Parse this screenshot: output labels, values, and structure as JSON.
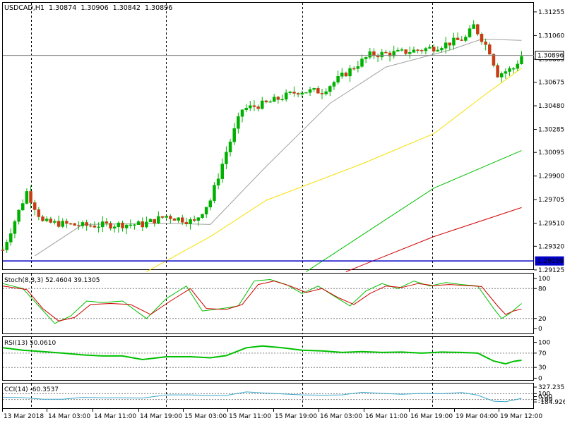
{
  "chart_data": {
    "type": "candlestick",
    "symbol_header": "USDCAD,H1",
    "ohlc_header": [
      "1.30874",
      "1.30906",
      "1.30842",
      "1.30896"
    ],
    "current_price_label": "1.30896",
    "hline_label": "1.29199",
    "hline_value": 1.29199,
    "price_range": [
      1.2913,
      1.3133
    ],
    "price_ticks": [
      "1.31255",
      "1.31060",
      "1.30865",
      "1.30675",
      "1.30480",
      "1.30285",
      "1.30095",
      "1.29900",
      "1.29705",
      "1.29510",
      "1.29320",
      "1.29125"
    ],
    "x_labels": [
      "13 Mar 2018",
      "14 Mar 03:00",
      "14 Mar 11:00",
      "14 Mar 19:00",
      "15 Mar 03:00",
      "15 Mar 11:00",
      "15 Mar 19:00",
      "16 Mar 03:00",
      "16 Mar 11:00",
      "16 Mar 19:00",
      "19 Mar 04:00",
      "19 Mar 12:00"
    ],
    "price_anchors": [
      [
        0,
        1.2929
      ],
      [
        6,
        1.2977
      ],
      [
        10,
        1.2952
      ],
      [
        20,
        1.2949
      ],
      [
        30,
        1.295
      ],
      [
        35,
        1.295
      ],
      [
        41,
        1.2957
      ],
      [
        48,
        1.2952
      ],
      [
        52,
        1.297
      ],
      [
        56,
        1.301
      ],
      [
        60,
        1.3045
      ],
      [
        66,
        1.305
      ],
      [
        74,
        1.306
      ],
      [
        80,
        1.306
      ],
      [
        86,
        1.3075
      ],
      [
        92,
        1.309
      ],
      [
        100,
        1.3092
      ],
      [
        108,
        1.3096
      ],
      [
        116,
        1.3104
      ],
      [
        118,
        1.3114
      ],
      [
        122,
        1.3093
      ],
      [
        124,
        1.3074
      ],
      [
        128,
        1.3079
      ],
      [
        130,
        1.3089
      ]
    ],
    "moving_averages": [
      {
        "color": "#a0a0a0",
        "points": [
          [
            8,
            1.2924
          ],
          [
            20,
            1.295
          ],
          [
            40,
            1.2951
          ],
          [
            52,
            1.295
          ],
          [
            66,
            1.2998
          ],
          [
            82,
            1.305
          ],
          [
            96,
            1.308
          ],
          [
            112,
            1.3094
          ],
          [
            120,
            1.3103
          ],
          [
            130,
            1.3102
          ]
        ]
      },
      {
        "color": "#f5e000",
        "points": [
          [
            36,
            1.2911
          ],
          [
            52,
            1.294
          ],
          [
            66,
            1.297
          ],
          [
            90,
            1.3
          ],
          [
            108,
            1.3025
          ],
          [
            122,
            1.306
          ],
          [
            130,
            1.3079
          ]
        ]
      },
      {
        "color": "#00c000",
        "points": [
          [
            76,
            1.2911
          ],
          [
            108,
            1.298
          ],
          [
            130,
            1.3011
          ]
        ]
      },
      {
        "color": "#d00000",
        "points": [
          [
            86,
            1.2911
          ],
          [
            108,
            1.294
          ],
          [
            130,
            1.2964
          ]
        ]
      }
    ],
    "panels": [
      {
        "name": "stoch",
        "label": "Stoch(8,3,3) 52.4604 39.1305",
        "range": [
          -10,
          110
        ],
        "levels": [
          80,
          20
        ],
        "ticks": [
          [
            "100",
            100
          ],
          [
            "80",
            80
          ],
          [
            "20",
            20
          ],
          [
            "0",
            0
          ]
        ],
        "series": [
          {
            "color": "#00c000",
            "points": [
              [
                0,
                90
              ],
              [
                5,
                80
              ],
              [
                9,
                45
              ],
              [
                13,
                10
              ],
              [
                17,
                25
              ],
              [
                21,
                55
              ],
              [
                25,
                52
              ],
              [
                30,
                55
              ],
              [
                36,
                20
              ],
              [
                41,
                60
              ],
              [
                46,
                85
              ],
              [
                50,
                35
              ],
              [
                55,
                40
              ],
              [
                59,
                45
              ],
              [
                63,
                95
              ],
              [
                67,
                98
              ],
              [
                71,
                88
              ],
              [
                75,
                70
              ],
              [
                79,
                85
              ],
              [
                83,
                65
              ],
              [
                87,
                45
              ],
              [
                91,
                75
              ],
              [
                95,
                90
              ],
              [
                99,
                80
              ],
              [
                103,
                95
              ],
              [
                107,
                85
              ],
              [
                111,
                92
              ],
              [
                115,
                88
              ],
              [
                119,
                85
              ],
              [
                123,
                40
              ],
              [
                125,
                20
              ],
              [
                127,
                30
              ],
              [
                130,
                50
              ]
            ]
          },
          {
            "color": "#d00000",
            "points": [
              [
                0,
                85
              ],
              [
                6,
                78
              ],
              [
                10,
                40
              ],
              [
                14,
                15
              ],
              [
                18,
                22
              ],
              [
                22,
                48
              ],
              [
                27,
                50
              ],
              [
                32,
                48
              ],
              [
                37,
                28
              ],
              [
                42,
                55
              ],
              [
                47,
                80
              ],
              [
                51,
                40
              ],
              [
                56,
                38
              ],
              [
                60,
                48
              ],
              [
                64,
                88
              ],
              [
                68,
                95
              ],
              [
                72,
                85
              ],
              [
                76,
                72
              ],
              [
                80,
                80
              ],
              [
                84,
                62
              ],
              [
                88,
                48
              ],
              [
                92,
                70
              ],
              [
                96,
                85
              ],
              [
                100,
                82
              ],
              [
                104,
                90
              ],
              [
                108,
                86
              ],
              [
                112,
                88
              ],
              [
                116,
                86
              ],
              [
                120,
                84
              ],
              [
                124,
                45
              ],
              [
                126,
                28
              ],
              [
                128,
                35
              ],
              [
                130,
                39
              ]
            ]
          }
        ]
      },
      {
        "name": "rsi",
        "label": "RSI(13) 50.0610",
        "range": [
          -5,
          115
        ],
        "levels": [
          70,
          30
        ],
        "ticks": [
          [
            "100",
            100
          ],
          [
            "70",
            70
          ],
          [
            "30",
            30
          ],
          [
            "0",
            0
          ]
        ],
        "series": [
          {
            "color": "#00c000",
            "points": [
              [
                0,
                85
              ],
              [
                5,
                78
              ],
              [
                10,
                74
              ],
              [
                15,
                70
              ],
              [
                20,
                65
              ],
              [
                25,
                62
              ],
              [
                30,
                62
              ],
              [
                35,
                52
              ],
              [
                41,
                60
              ],
              [
                47,
                60
              ],
              [
                52,
                57
              ],
              [
                56,
                63
              ],
              [
                61,
                85
              ],
              [
                65,
                90
              ],
              [
                70,
                85
              ],
              [
                75,
                78
              ],
              [
                80,
                76
              ],
              [
                85,
                72
              ],
              [
                90,
                74
              ],
              [
                95,
                72
              ],
              [
                100,
                73
              ],
              [
                105,
                70
              ],
              [
                110,
                73
              ],
              [
                115,
                72
              ],
              [
                119,
                70
              ],
              [
                123,
                48
              ],
              [
                126,
                40
              ],
              [
                128,
                47
              ],
              [
                130,
                50
              ]
            ]
          }
        ]
      },
      {
        "name": "cci",
        "label": "CCI(14) -60.3537",
        "range": [
          -400,
          450
        ],
        "levels": [
          100,
          -100
        ],
        "ticks": [
          [
            "327.2351",
            327.2351
          ],
          [
            "100",
            100
          ],
          [
            "0.00",
            0
          ],
          [
            "-100",
            -100
          ],
          [
            "-184.9265",
            -184.9265
          ]
        ],
        "series": [
          {
            "color": "#3aa6c8",
            "points": [
              [
                0,
                -20
              ],
              [
                5,
                -35
              ],
              [
                10,
                -90
              ],
              [
                15,
                -90
              ],
              [
                20,
                -25
              ],
              [
                25,
                -40
              ],
              [
                30,
                -40
              ],
              [
                35,
                -50
              ],
              [
                41,
                60
              ],
              [
                47,
                60
              ],
              [
                52,
                40
              ],
              [
                56,
                40
              ],
              [
                61,
                160
              ],
              [
                65,
                130
              ],
              [
                70,
                90
              ],
              [
                75,
                60
              ],
              [
                80,
                50
              ],
              [
                85,
                60
              ],
              [
                90,
                150
              ],
              [
                95,
                110
              ],
              [
                100,
                80
              ],
              [
                105,
                110
              ],
              [
                110,
                100
              ],
              [
                115,
                140
              ],
              [
                119,
                50
              ],
              [
                123,
                -160
              ],
              [
                126,
                -175
              ],
              [
                128,
                -120
              ],
              [
                130,
                -60
              ]
            ]
          }
        ]
      }
    ]
  }
}
